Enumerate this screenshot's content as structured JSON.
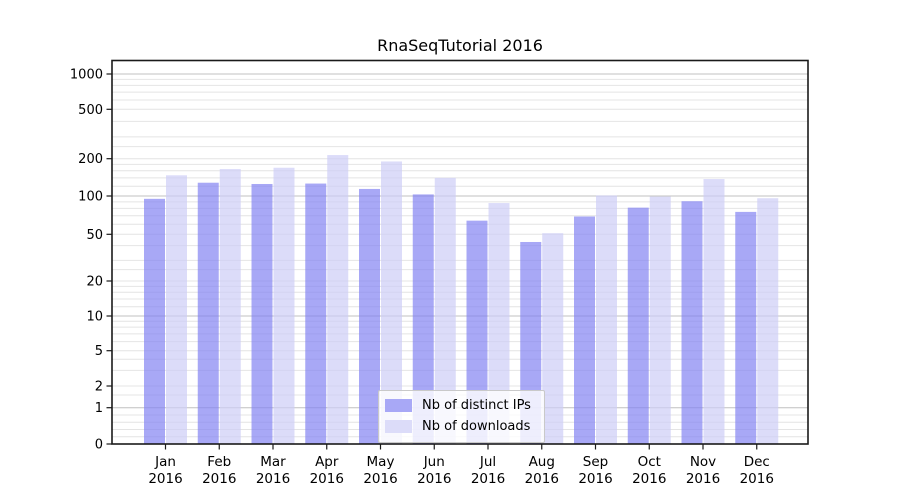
{
  "chart_data": {
    "type": "bar",
    "title": "RnaSeqTutorial 2016",
    "categories": [
      "Jan 2016",
      "Feb 2016",
      "Mar 2016",
      "Apr 2016",
      "May 2016",
      "Jun 2016",
      "Jul 2016",
      "Aug 2016",
      "Sep 2016",
      "Oct 2016",
      "Nov 2016",
      "Dec 2016"
    ],
    "category_months": [
      "Jan",
      "Feb",
      "Mar",
      "Apr",
      "May",
      "Jun",
      "Jul",
      "Aug",
      "Sep",
      "Oct",
      "Nov",
      "Dec"
    ],
    "category_year": "2016",
    "series": [
      {
        "name": "Nb of distinct IPs",
        "color": "#8383f2",
        "alpha": 0.7,
        "visible_color": "#a8a8f6",
        "values": [
          95,
          128,
          125,
          126,
          114,
          103,
          64,
          43,
          69,
          81,
          91,
          75
        ]
      },
      {
        "name": "Nb of downloads",
        "color": "#cdcdf6",
        "alpha": 0.7,
        "visible_color": "#dcdcf9",
        "values": [
          147,
          165,
          169,
          214,
          190,
          140,
          88,
          51,
          101,
          99,
          137,
          96
        ]
      }
    ],
    "yscale": "symlog",
    "ylim": [
      0,
      1000
    ],
    "yticks": [
      0,
      1,
      2,
      5,
      10,
      20,
      50,
      100,
      200,
      500,
      1000
    ],
    "minor_gridlines": [
      0.2,
      0.4,
      0.6,
      0.8,
      1.5,
      2,
      3,
      4,
      5,
      6,
      7,
      8,
      9,
      12,
      14,
      16,
      18,
      20,
      25,
      30,
      40,
      50,
      60,
      70,
      80,
      90,
      120,
      140,
      160,
      180,
      200,
      250,
      300,
      400,
      500,
      600,
      700,
      800,
      900
    ],
    "major_gridlines": [
      1,
      10,
      100,
      1000
    ],
    "grid": true,
    "legend_position": "lower center",
    "xlabel": "",
    "ylabel": ""
  },
  "colors": {
    "background": "#ffffff",
    "spine": "#1a1a1a",
    "tick_label": "#000000",
    "grid_minor": "#e4e4e4",
    "grid_major": "#c0c0c0",
    "legend_border": "#c9c9c9"
  }
}
